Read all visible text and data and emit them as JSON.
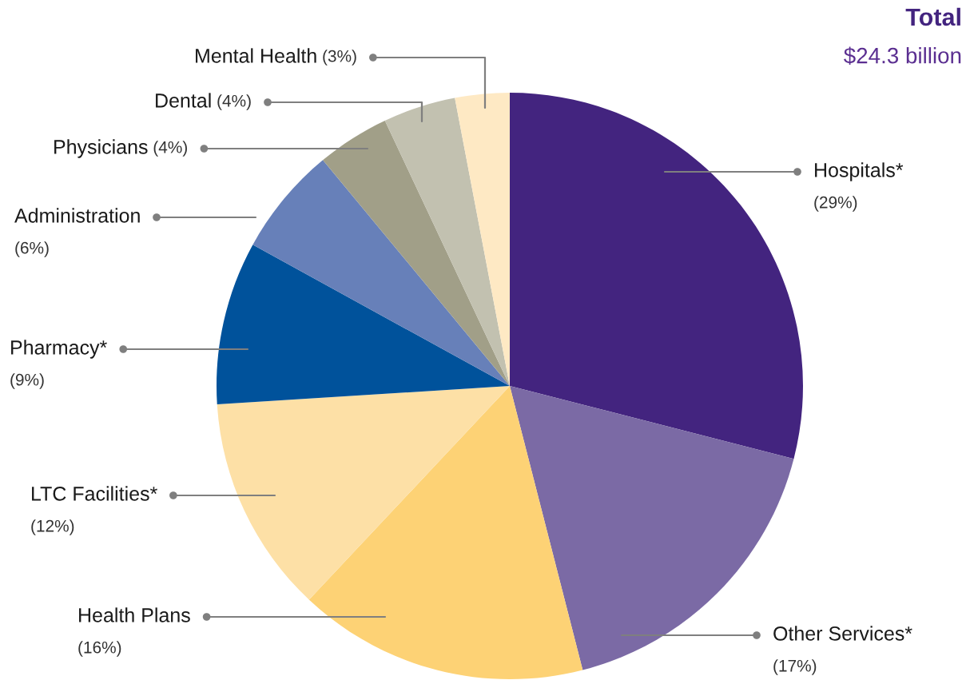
{
  "chart_data": {
    "type": "pie",
    "title": "Total",
    "subtitle": "$24.3 billion",
    "categories": [
      "Hospitals*",
      "Other Services*",
      "Health Plans",
      "LTC Facilities*",
      "Pharmacy*",
      "Administration",
      "Physicians",
      "Dental",
      "Mental Health"
    ],
    "values": [
      29,
      17,
      16,
      12,
      9,
      6,
      4,
      4,
      3
    ],
    "value_labels": [
      "(29%)",
      "(17%)",
      "(16%)",
      "(12%)",
      "(9%)",
      "(6%)",
      "(4%)",
      "(4%)",
      "(3%)"
    ],
    "colors": [
      "#43247f",
      "#7b6aa5",
      "#fdd275",
      "#fde0a6",
      "#00529b",
      "#6780b9",
      "#a19f88",
      "#c2c1b0",
      "#fee9c4"
    ],
    "legend": false
  }
}
